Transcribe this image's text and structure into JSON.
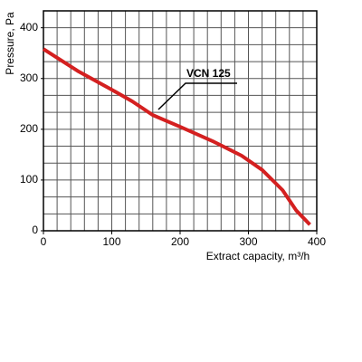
{
  "chart_data": {
    "type": "line",
    "x_label": "Extract capacity, m³/h",
    "y_label": "Pressure, Pa",
    "x": [
      0,
      50,
      100,
      130,
      160,
      200,
      250,
      290,
      320,
      350,
      370,
      390
    ],
    "series": [
      {
        "name": "VCN 125",
        "color": "#d42020",
        "values": [
          358,
          315,
          278,
          255,
          228,
          205,
          175,
          148,
          120,
          80,
          40,
          12
        ]
      }
    ],
    "xlim": [
      0,
      400
    ],
    "ylim": [
      0,
      433.3
    ],
    "xticks": [
      0,
      100,
      200,
      300,
      400
    ],
    "yticks": [
      0,
      100,
      200,
      300,
      400
    ],
    "xgrid": [
      0,
      20,
      40,
      60,
      80,
      100,
      120,
      140,
      160,
      180,
      200,
      220,
      240,
      260,
      280,
      300,
      320,
      340,
      360,
      380,
      400
    ],
    "ygrid": [
      0,
      33.3,
      66.7,
      100,
      133.3,
      166.7,
      200,
      233.3,
      266.7,
      300,
      333.3,
      366.7,
      400,
      433.3
    ],
    "grid": true
  }
}
